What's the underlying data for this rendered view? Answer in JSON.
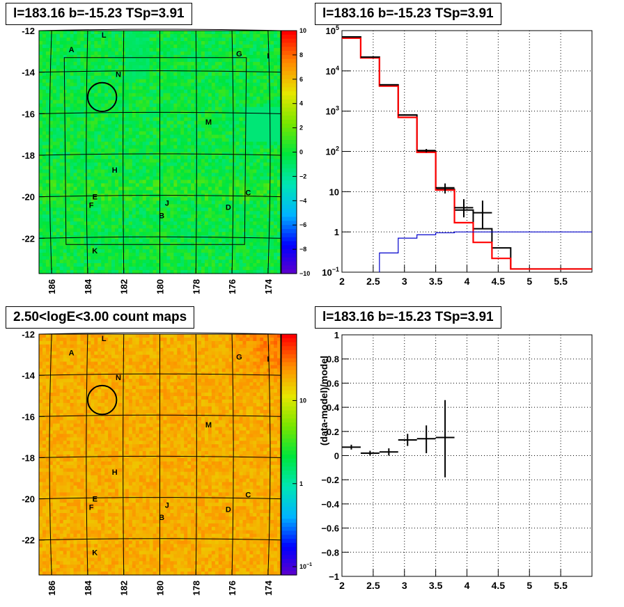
{
  "panels": {
    "top_left_title": "l=183.16 b=-15.23 TSp=3.91",
    "top_right_title": "l=183.16 b=-15.23 TSp=3.91",
    "bottom_left_title": "2.50<logE<3.00 count maps",
    "bottom_right_title": "l=183.16 b=-15.23 TSp=3.91"
  },
  "chart_data": [
    {
      "type": "heatmap",
      "panel": "top-left",
      "title": "l=183.16 b=-15.23 TSp=3.91",
      "xlim": [
        186.7,
        173.3
      ],
      "ylim": [
        -23.7,
        -12.0
      ],
      "xticks": [
        186,
        184,
        182,
        180,
        178,
        176,
        174
      ],
      "yticks": [
        -12,
        -14,
        -16,
        -18,
        -20,
        -22
      ],
      "colorbar": {
        "min": -10,
        "max": 10,
        "ticks": [
          10,
          8,
          6,
          4,
          2,
          0,
          -2,
          -4,
          -6,
          -8,
          -10
        ]
      },
      "source_labels": [
        {
          "text": "A",
          "l": 184.9,
          "b": -12.9
        },
        {
          "text": "L",
          "l": 183.1,
          "b": -12.2
        },
        {
          "text": "G",
          "l": 175.6,
          "b": -13.1
        },
        {
          "text": "I",
          "l": 174.0,
          "b": -13.2
        },
        {
          "text": "N",
          "l": 182.3,
          "b": -14.1
        },
        {
          "text": "M",
          "l": 177.3,
          "b": -16.4
        },
        {
          "text": "H",
          "l": 182.5,
          "b": -18.7
        },
        {
          "text": "C",
          "l": 175.1,
          "b": -19.8
        },
        {
          "text": "E",
          "l": 183.6,
          "b": -20.0
        },
        {
          "text": "J",
          "l": 179.6,
          "b": -20.3
        },
        {
          "text": "F",
          "l": 183.8,
          "b": -20.4
        },
        {
          "text": "D",
          "l": 176.2,
          "b": -20.5
        },
        {
          "text": "B",
          "l": 179.9,
          "b": -20.9
        },
        {
          "text": "K",
          "l": 183.6,
          "b": -22.6
        }
      ],
      "circle": {
        "l": 183.2,
        "b": -15.2,
        "r": 0.5
      }
    },
    {
      "type": "line",
      "panel": "top-right",
      "title": "l=183.16 b=-15.23 TSp=3.91",
      "log_y": true,
      "xlim": [
        2,
        6
      ],
      "ylim": [
        0.1,
        100000
      ],
      "xticks": [
        2,
        2.5,
        3,
        3.5,
        4,
        4.5,
        5,
        5.5
      ],
      "yticks": [
        {
          "v": 100000,
          "label": "10",
          "exp": "5"
        },
        {
          "v": 10000,
          "label": "10",
          "exp": "4"
        },
        {
          "v": 1000,
          "label": "10",
          "exp": "3"
        },
        {
          "v": 100,
          "label": "10",
          "exp": "2"
        },
        {
          "v": 10,
          "label": "10",
          "exp": ""
        },
        {
          "v": 1,
          "label": "1",
          "exp": ""
        },
        {
          "v": 0.1,
          "label": "10",
          "exp": "−1"
        }
      ],
      "grid": true,
      "data_points": [
        {
          "x": 2.15,
          "y": 70000,
          "xerr": 0.15
        },
        {
          "x": 2.45,
          "y": 22000,
          "xerr": 0.15
        },
        {
          "x": 2.75,
          "y": 4500,
          "xerr": 0.15
        },
        {
          "x": 3.05,
          "y": 800,
          "xerr": 0.15
        },
        {
          "x": 3.35,
          "y": 105,
          "xerr": 0.15,
          "ylo": 95,
          "yhi": 115
        },
        {
          "x": 3.65,
          "y": 12.5,
          "xerr": 0.15,
          "ylo": 9,
          "yhi": 16
        },
        {
          "x": 3.95,
          "y": 4.0,
          "xerr": 0.15,
          "ylo": 2.3,
          "yhi": 6.5
        },
        {
          "x": 4.25,
          "y": 3.0,
          "xerr": 0.15,
          "ylo": 1.2,
          "yhi": 6.0
        }
      ],
      "series": [
        {
          "color": "#000000",
          "edges": [
            2.0,
            2.3,
            2.6,
            2.9,
            3.2,
            3.5,
            3.8,
            4.1,
            4.4,
            4.7,
            6.0
          ],
          "values": [
            70000,
            22000,
            4500,
            800,
            100,
            11.5,
            3.5,
            1.2,
            0.4,
            0.12
          ]
        },
        {
          "color": "#ff0000",
          "edges": [
            2.0,
            2.3,
            2.6,
            2.9,
            3.2,
            3.5,
            3.8,
            4.1,
            4.4,
            4.7,
            6.0
          ],
          "values": [
            65000,
            21000,
            4200,
            700,
            95,
            11.0,
            1.7,
            0.55,
            0.22,
            0.12
          ]
        },
        {
          "color": "#0000cc",
          "edges": [
            2.6,
            2.9,
            3.2,
            3.5,
            3.8,
            4.1,
            4.4,
            6.0
          ],
          "values": [
            0.3,
            0.7,
            0.85,
            0.95,
            1.0,
            1.0,
            1.0
          ],
          "start": [
            2.6,
            0.08
          ]
        }
      ]
    },
    {
      "type": "heatmap",
      "panel": "bottom-left",
      "title": "2.50<logE<3.00 count maps",
      "xlim": [
        186.7,
        173.3
      ],
      "ylim": [
        -23.7,
        -12.0
      ],
      "xticks": [
        186,
        184,
        182,
        180,
        178,
        176,
        174
      ],
      "yticks": [
        -12,
        -14,
        -16,
        -18,
        -20,
        -22
      ],
      "colorbar": {
        "log": true,
        "ticks": [
          {
            "v": 10,
            "label": "10",
            "exp": ""
          },
          {
            "v": 1,
            "label": "1",
            "exp": ""
          },
          {
            "v": 0.1,
            "label": "10",
            "exp": "−1"
          }
        ]
      },
      "source_labels": [
        {
          "text": "A",
          "l": 184.9,
          "b": -12.9
        },
        {
          "text": "L",
          "l": 183.1,
          "b": -12.2
        },
        {
          "text": "G",
          "l": 175.6,
          "b": -13.1
        },
        {
          "text": "I",
          "l": 174.0,
          "b": -13.2
        },
        {
          "text": "N",
          "l": 182.3,
          "b": -14.1
        },
        {
          "text": "M",
          "l": 177.3,
          "b": -16.4
        },
        {
          "text": "H",
          "l": 182.5,
          "b": -18.7
        },
        {
          "text": "C",
          "l": 175.1,
          "b": -19.8
        },
        {
          "text": "E",
          "l": 183.6,
          "b": -20.0
        },
        {
          "text": "J",
          "l": 179.6,
          "b": -20.3
        },
        {
          "text": "F",
          "l": 183.8,
          "b": -20.4
        },
        {
          "text": "D",
          "l": 176.2,
          "b": -20.5
        },
        {
          "text": "B",
          "l": 179.9,
          "b": -20.9
        },
        {
          "text": "K",
          "l": 183.6,
          "b": -22.6
        }
      ],
      "circle": {
        "l": 183.2,
        "b": -15.2,
        "r": 0.5
      }
    },
    {
      "type": "scatter",
      "panel": "bottom-right",
      "title": "l=183.16 b=-15.23 TSp=3.91",
      "ylabel": "(data-model)/model",
      "xlim": [
        2,
        6
      ],
      "ylim": [
        -1,
        1
      ],
      "xticks": [
        2,
        2.5,
        3,
        3.5,
        4,
        4.5,
        5,
        5.5
      ],
      "yticks": [
        1,
        0.8,
        0.6,
        0.4,
        0.2,
        0,
        -0.2,
        -0.4,
        -0.6,
        -0.8,
        -1
      ],
      "grid": true,
      "points": [
        {
          "x": 2.15,
          "y": 0.07,
          "xerr": 0.15,
          "ylo": 0.05,
          "yhi": 0.09
        },
        {
          "x": 2.45,
          "y": 0.02,
          "xerr": 0.15,
          "ylo": 0.0,
          "yhi": 0.04
        },
        {
          "x": 2.75,
          "y": 0.03,
          "xerr": 0.15,
          "ylo": 0.0,
          "yhi": 0.06
        },
        {
          "x": 3.05,
          "y": 0.13,
          "xerr": 0.15,
          "ylo": 0.08,
          "yhi": 0.18
        },
        {
          "x": 3.35,
          "y": 0.14,
          "xerr": 0.15,
          "ylo": 0.02,
          "yhi": 0.25
        },
        {
          "x": 3.65,
          "y": 0.15,
          "xerr": 0.15,
          "ylo": -0.18,
          "yhi": 0.46
        }
      ]
    }
  ]
}
